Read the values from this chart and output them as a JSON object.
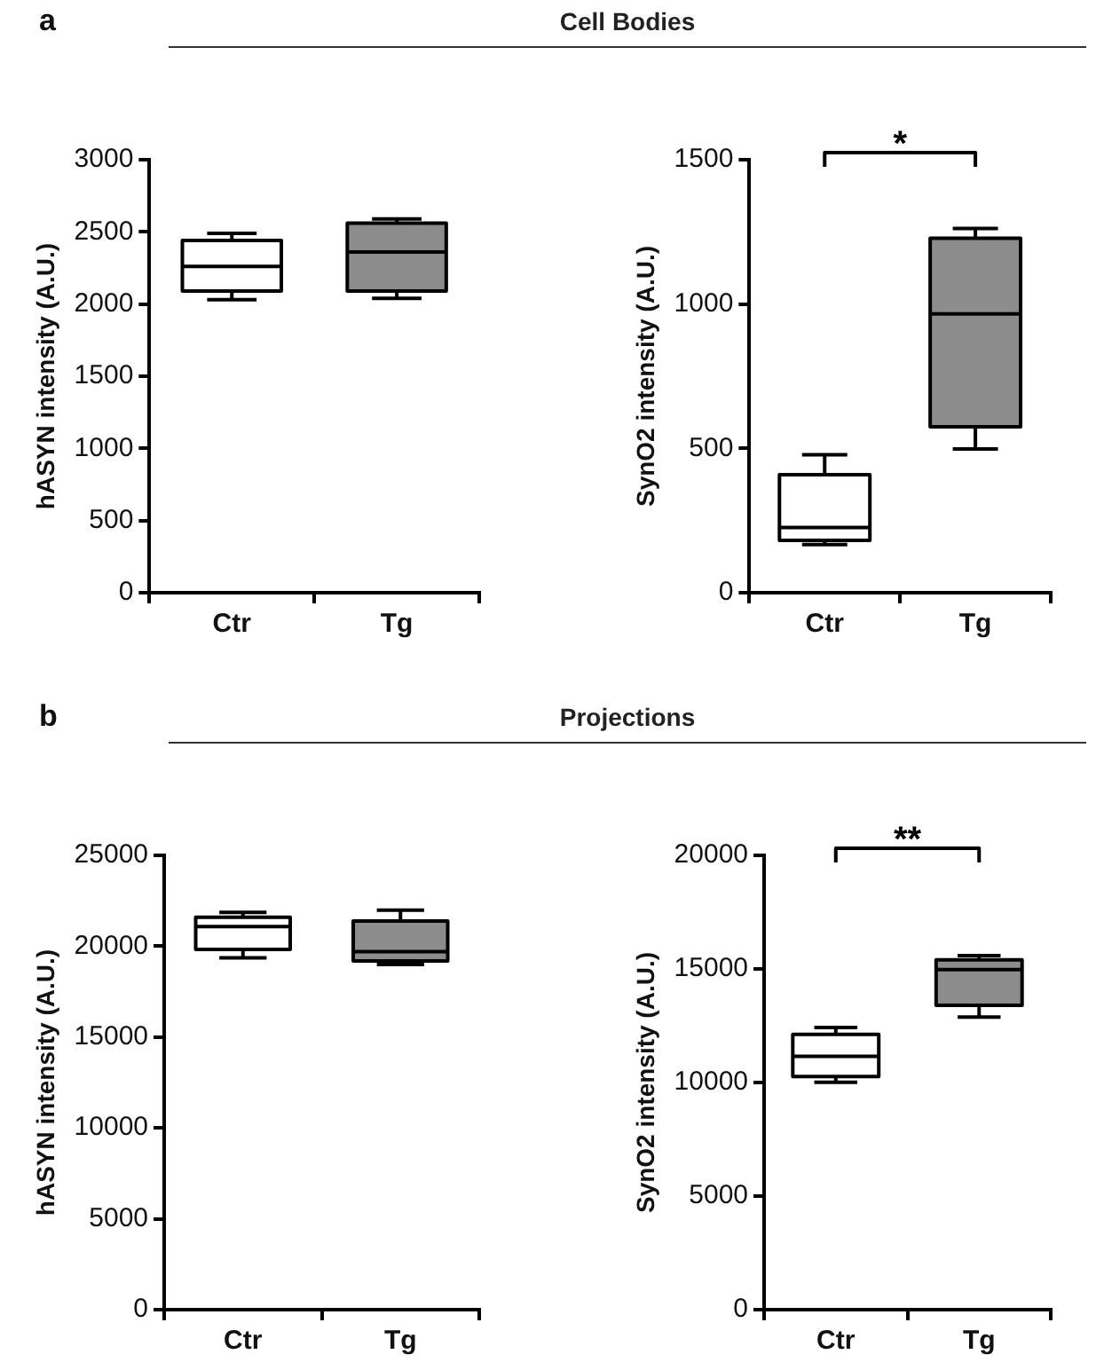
{
  "chart_data": [
    {
      "type": "box",
      "title": "a",
      "ylabel": "hASYN intensity (A.U.)",
      "categories": [
        "Ctr",
        "Tg"
      ],
      "colors": [
        "#ffffff",
        "#8c8c8c"
      ],
      "ylim": [
        0,
        3000
      ],
      "yticks": [
        0,
        500,
        1000,
        1500,
        2000,
        2500,
        3000
      ],
      "boxes": [
        {
          "low": 2030,
          "q1": 2090,
          "median": 2260,
          "q3": 2440,
          "high": 2490
        },
        {
          "low": 2040,
          "q1": 2090,
          "median": 2360,
          "q3": 2560,
          "high": 2590
        }
      ]
    },
    {
      "type": "box",
      "subtitle": "Cell Bodies",
      "ylabel": "SynO2 intensity (A.U.)",
      "categories": [
        "Ctr",
        "Tg"
      ],
      "colors": [
        "#ffffff",
        "#8c8c8c"
      ],
      "ylim": [
        0,
        1500
      ],
      "yticks": [
        0,
        500,
        1000,
        1500
      ],
      "annotations": [
        "*"
      ],
      "boxes": [
        {
          "low": 167,
          "q1": 181,
          "median": 226,
          "q3": 409,
          "high": 478
        },
        {
          "low": 498,
          "q1": 575,
          "median": 966,
          "q3": 1228,
          "high": 1262
        }
      ]
    },
    {
      "type": "box",
      "title": "b",
      "ylabel": "hASYN intensity (A.U.)",
      "categories": [
        "Ctr",
        "Tg"
      ],
      "colors": [
        "#ffffff",
        "#8c8c8c"
      ],
      "ylim": [
        0,
        25000
      ],
      "yticks": [
        0,
        5000,
        10000,
        15000,
        20000,
        25000
      ],
      "boxes": [
        {
          "low": 19360,
          "q1": 19830,
          "median": 21080,
          "q3": 21590,
          "high": 21860
        },
        {
          "low": 18990,
          "q1": 19190,
          "median": 19700,
          "q3": 21390,
          "high": 21990
        }
      ]
    },
    {
      "type": "box",
      "subtitle": "Projections",
      "ylabel": "SynO2 intensity (A.U.)",
      "categories": [
        "Ctr",
        "Tg"
      ],
      "colors": [
        "#ffffff",
        "#8c8c8c"
      ],
      "ylim": [
        0,
        20000
      ],
      "yticks": [
        0,
        5000,
        10000,
        15000,
        20000
      ],
      "annotations": [
        "**"
      ],
      "boxes": [
        {
          "low": 10010,
          "q1": 10260,
          "median": 11150,
          "q3": 12120,
          "high": 12420
        },
        {
          "low": 12880,
          "q1": 13400,
          "median": 14970,
          "q3": 15400,
          "high": 15590
        }
      ]
    }
  ]
}
